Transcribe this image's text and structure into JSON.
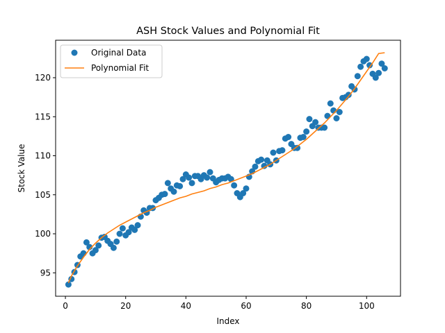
{
  "chart_data": {
    "type": "scatter",
    "title": "ASH Stock Values and Polynomial Fit",
    "xlabel": "Index",
    "ylabel": "Stock Value",
    "xlim": [
      -3.25,
      111.25
    ],
    "ylim": [
      92.0,
      124.8
    ],
    "xticks": [
      0,
      20,
      40,
      60,
      80,
      100
    ],
    "yticks": [
      95,
      100,
      105,
      110,
      115,
      120
    ],
    "grid": false,
    "legend_position": "top-left",
    "series": [
      {
        "name": "Original Data",
        "kind": "scatter",
        "color": "#1f77b4",
        "x": [
          1,
          2,
          3,
          4,
          5,
          6,
          7,
          8,
          9,
          10,
          11,
          12,
          13,
          14,
          15,
          16,
          17,
          18,
          19,
          20,
          21,
          22,
          23,
          24,
          25,
          26,
          27,
          28,
          29,
          30,
          31,
          32,
          33,
          34,
          35,
          36,
          37,
          38,
          39,
          40,
          41,
          42,
          43,
          44,
          45,
          46,
          47,
          48,
          49,
          50,
          51,
          52,
          53,
          54,
          55,
          56,
          57,
          58,
          59,
          60,
          61,
          62,
          63,
          64,
          65,
          66,
          67,
          68,
          69,
          70,
          71,
          72,
          73,
          74,
          75,
          76,
          77,
          78,
          79,
          80,
          81,
          82,
          83,
          84,
          85,
          86,
          87,
          88,
          89,
          90,
          91,
          92,
          93,
          94,
          95,
          96,
          97,
          98,
          99,
          100,
          101,
          102,
          103,
          104,
          105,
          106
        ],
        "y": [
          93.5,
          94.2,
          95.1,
          96.0,
          97.1,
          97.5,
          98.9,
          98.3,
          97.5,
          97.9,
          98.5,
          99.5,
          99.6,
          99.1,
          98.7,
          98.2,
          99.0,
          100.0,
          100.7,
          99.8,
          100.2,
          100.8,
          100.5,
          101.1,
          102.2,
          103.0,
          102.7,
          103.3,
          103.3,
          104.3,
          104.6,
          105.0,
          105.1,
          106.5,
          105.8,
          105.4,
          106.2,
          106.1,
          107.0,
          107.6,
          107.2,
          106.5,
          107.4,
          107.4,
          107.0,
          107.5,
          107.2,
          107.9,
          107.1,
          106.6,
          106.9,
          107.1,
          107.1,
          107.3,
          107.0,
          106.2,
          105.2,
          104.7,
          105.2,
          105.8,
          107.3,
          108.0,
          108.6,
          109.3,
          109.5,
          108.7,
          109.4,
          108.9,
          110.4,
          109.4,
          110.6,
          110.7,
          112.2,
          112.4,
          111.5,
          111.0,
          111.0,
          112.3,
          112.4,
          113.1,
          114.7,
          113.8,
          114.3,
          113.6,
          113.6,
          113.6,
          115.1,
          116.7,
          115.8,
          114.8,
          115.6,
          117.4,
          117.5,
          117.8,
          118.9,
          118.5,
          120.2,
          121.4,
          122.1,
          122.4,
          121.6,
          120.5,
          120.0,
          120.6,
          121.8,
          121.2
        ]
      },
      {
        "name": "Polynomial Fit",
        "kind": "line",
        "color": "#ff7f0e",
        "x": [
          1,
          2,
          4,
          6,
          8,
          10,
          12,
          14,
          16,
          18,
          20,
          22,
          24,
          26,
          28,
          30,
          32,
          34,
          36,
          38,
          40,
          42,
          44,
          46,
          48,
          50,
          52,
          54,
          56,
          58,
          60,
          62,
          64,
          66,
          68,
          70,
          72,
          74,
          76,
          78,
          80,
          82,
          84,
          86,
          88,
          90,
          92,
          94,
          96,
          98,
          100,
          102,
          104,
          106
        ],
        "y": [
          93.7,
          94.6,
          95.9,
          97.0,
          98.0,
          98.8,
          99.5,
          100.1,
          100.6,
          101.1,
          101.5,
          101.9,
          102.3,
          102.7,
          103.0,
          103.4,
          103.7,
          104.0,
          104.3,
          104.6,
          104.8,
          105.1,
          105.3,
          105.5,
          105.8,
          106.0,
          106.3,
          106.5,
          106.8,
          107.1,
          107.4,
          107.7,
          108.1,
          108.5,
          108.9,
          109.4,
          109.9,
          110.4,
          110.9,
          111.5,
          112.1,
          112.8,
          113.5,
          114.2,
          115.0,
          115.8,
          116.7,
          117.6,
          118.6,
          119.7,
          120.8,
          121.9,
          123.1,
          123.2
        ]
      }
    ]
  }
}
